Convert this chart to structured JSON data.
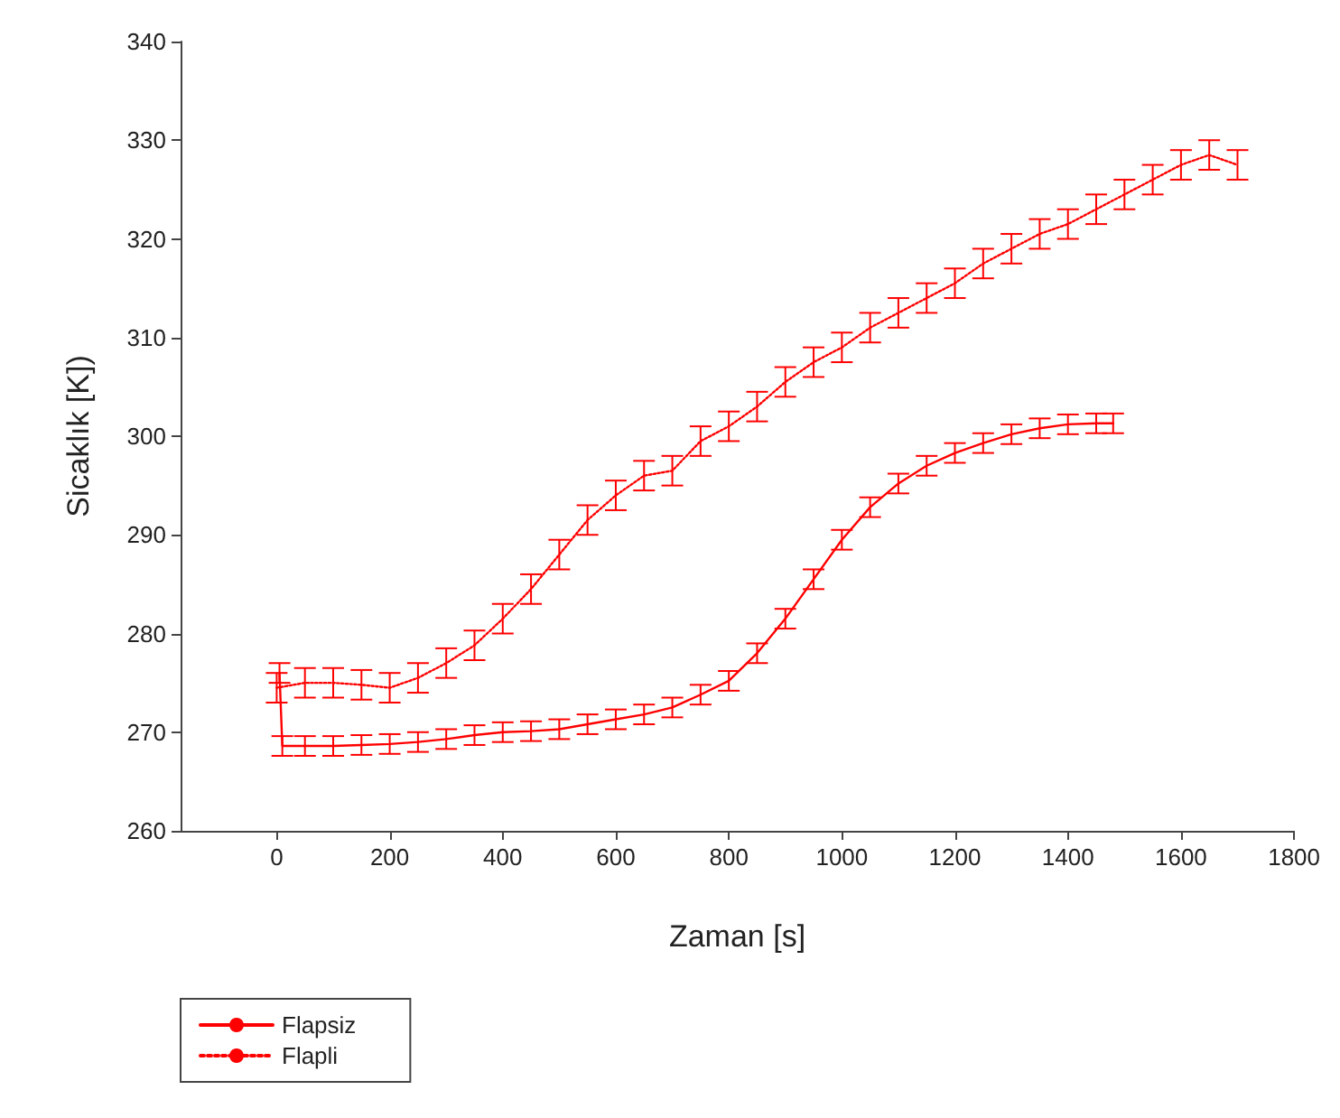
{
  "chart_data": {
    "type": "line",
    "xlabel": "Zaman [s]",
    "ylabel": "Sicaklık [K])",
    "xlim": [
      -170,
      1800
    ],
    "xticks": [
      0,
      200,
      400,
      600,
      800,
      1000,
      1200,
      1400,
      1600,
      1800
    ],
    "ylim": [
      260,
      340
    ],
    "yticks": [
      260,
      270,
      280,
      290,
      300,
      310,
      320,
      330,
      340
    ],
    "grid": false,
    "legend": "bottom left",
    "marker": "none",
    "series": [
      {
        "name": "Flapsiz",
        "color": "#ff0000",
        "line_style": "solid",
        "x": [
          5,
          10,
          50,
          100,
          150,
          200,
          250,
          300,
          350,
          400,
          450,
          500,
          550,
          600,
          650,
          700,
          750,
          800,
          850,
          900,
          950,
          1000,
          1050,
          1100,
          1150,
          1200,
          1250,
          1300,
          1350,
          1400,
          1450,
          1480
        ],
        "values": [
          276,
          268.6,
          268.6,
          268.6,
          268.7,
          268.8,
          269,
          269.3,
          269.7,
          270,
          270.1,
          270.3,
          270.8,
          271.3,
          271.8,
          272.5,
          273.8,
          275.2,
          278,
          281.5,
          285.5,
          289.5,
          292.8,
          295.2,
          297,
          298.3,
          299.3,
          300.2,
          300.8,
          301.2,
          301.3,
          301.3
        ],
        "errors": [
          1,
          1,
          1,
          1,
          1,
          1,
          1,
          1,
          1,
          1,
          1,
          1,
          1,
          1,
          1,
          1,
          1,
          1,
          1,
          1,
          1,
          1,
          1,
          1,
          1,
          1,
          1,
          1,
          1,
          1,
          1,
          1
        ]
      },
      {
        "name": "Flapli",
        "color": "#ff0000",
        "line_style": "dotted",
        "x": [
          0,
          50,
          100,
          150,
          200,
          250,
          300,
          350,
          400,
          450,
          500,
          550,
          600,
          650,
          700,
          750,
          800,
          850,
          900,
          950,
          1000,
          1050,
          1100,
          1150,
          1200,
          1250,
          1300,
          1350,
          1400,
          1450,
          1500,
          1550,
          1600,
          1650,
          1700
        ],
        "values": [
          274.5,
          275,
          275,
          274.8,
          274.5,
          275.5,
          277,
          278.8,
          281.5,
          284.5,
          288,
          291.5,
          294,
          296,
          296.5,
          299.5,
          301,
          303,
          305.5,
          307.5,
          309,
          311,
          312.5,
          314,
          315.5,
          317.5,
          319,
          320.5,
          321.5,
          323,
          324.5,
          326,
          327.5,
          328.5,
          327.5
        ],
        "errors": [
          1.5,
          1.5,
          1.5,
          1.5,
          1.5,
          1.5,
          1.5,
          1.5,
          1.5,
          1.5,
          1.5,
          1.5,
          1.5,
          1.5,
          1.5,
          1.5,
          1.5,
          1.5,
          1.5,
          1.5,
          1.5,
          1.5,
          1.5,
          1.5,
          1.5,
          1.5,
          1.5,
          1.5,
          1.5,
          1.5,
          1.5,
          1.5,
          1.5,
          1.5,
          1.5
        ]
      }
    ]
  }
}
